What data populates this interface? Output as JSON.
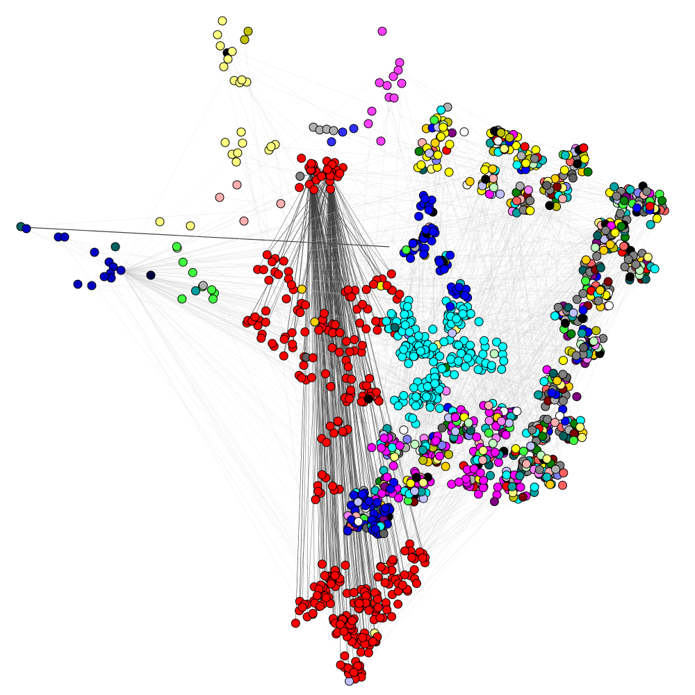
{
  "diagram": {
    "type": "network-graph",
    "background": "#ffffff",
    "node_outline_color": "#000000",
    "edge_colors": {
      "light": "#c8c8c8",
      "dark": "#404040"
    },
    "regions": [
      {
        "name": "northwest-yellow-branch",
        "color": "#ffff80"
      },
      {
        "name": "northwest-magenta-branch",
        "color": "#ff40ff"
      },
      {
        "name": "west-blue-cluster",
        "color": "#0000c0"
      },
      {
        "name": "west-green-cluster",
        "color": "#40ff40"
      },
      {
        "name": "west-red-fan",
        "color": "#ff0000"
      },
      {
        "name": "central-cyan-cluster",
        "color": "#00ffff"
      },
      {
        "name": "north-blue-cluster",
        "color": "#0000ff"
      },
      {
        "name": "northeast-mixed-cluster",
        "color": "#ffff00"
      },
      {
        "name": "east-mixed-cluster",
        "color": "#808080"
      },
      {
        "name": "southeast-magenta-cluster",
        "color": "#ff00ff"
      },
      {
        "name": "south-blue-cluster",
        "color": "#0000dd"
      },
      {
        "name": "south-red-cluster",
        "color": "#ff0000"
      }
    ],
    "node_colors": [
      "#ff0000",
      "#00ffff",
      "#ff00ff",
      "#0000ff",
      "#ffff00",
      "#40ff40",
      "#808080",
      "#000000",
      "#00c0c0",
      "#c0c000",
      "#ffff80",
      "#ff80ff",
      "#8080ff",
      "#ffb0b0",
      "#006060",
      "#800080",
      "#c0ffc0",
      "#ff6060",
      "#ffffff",
      "#606060",
      "#b0b0b0",
      "#c0c0ff",
      "#800000",
      "#008000",
      "#00a0a0",
      "#ffd000"
    ]
  }
}
